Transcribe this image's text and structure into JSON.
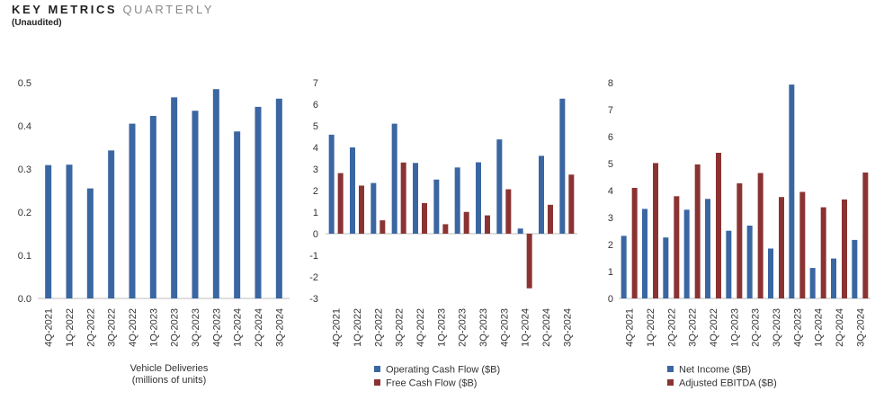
{
  "header": {
    "title_bold": "KEY METRICS",
    "title_light": "QUARTERLY",
    "subtitle": "(Unaudited)"
  },
  "colors": {
    "blue": "#3a66a2",
    "red": "#8b3333",
    "axis": "#bdbdbd",
    "text": "#333333"
  },
  "chart_data": [
    {
      "type": "bar",
      "categories": [
        "4Q-2021",
        "1Q-2022",
        "2Q-2022",
        "3Q-2022",
        "4Q-2022",
        "1Q-2023",
        "2Q-2023",
        "3Q-2023",
        "4Q-2023",
        "1Q-2024",
        "2Q-2024",
        "3Q-2024"
      ],
      "series": [
        {
          "name": "Vehicle Deliveries",
          "color": "#3a66a2",
          "values": [
            0.309,
            0.31,
            0.255,
            0.343,
            0.405,
            0.423,
            0.466,
            0.435,
            0.485,
            0.387,
            0.444,
            0.463
          ]
        }
      ],
      "yticks": [
        "0.0",
        "0.1",
        "0.2",
        "0.3",
        "0.4",
        "0.5"
      ],
      "ylim": [
        0,
        0.5
      ],
      "xlabel": [
        "Vehicle Deliveries",
        "(millions of units)"
      ],
      "legend": []
    },
    {
      "type": "bar",
      "categories": [
        "4Q-2021",
        "1Q-2022",
        "2Q-2022",
        "3Q-2022",
        "4Q-2022",
        "1Q-2023",
        "2Q-2023",
        "3Q-2023",
        "4Q-2023",
        "1Q-2024",
        "2Q-2024",
        "3Q-2024"
      ],
      "series": [
        {
          "name": "Operating Cash Flow ($B)",
          "color": "#3a66a2",
          "values": [
            4.59,
            4.0,
            2.35,
            5.1,
            3.28,
            2.51,
            3.07,
            3.31,
            4.37,
            0.24,
            3.61,
            6.26
          ]
        },
        {
          "name": "Free Cash Flow ($B)",
          "color": "#8b3333",
          "values": [
            2.81,
            2.23,
            0.62,
            3.3,
            1.42,
            0.44,
            1.01,
            0.85,
            2.06,
            -2.53,
            1.34,
            2.74
          ]
        }
      ],
      "yticks": [
        "-3",
        "-2",
        "-1",
        "0",
        "1",
        "2",
        "3",
        "4",
        "5",
        "6",
        "7"
      ],
      "ylim": [
        -3,
        7
      ],
      "xlabel": [],
      "legend": [
        "Operating Cash Flow ($B)",
        "Free Cash Flow ($B)"
      ]
    },
    {
      "type": "bar",
      "categories": [
        "4Q-2021",
        "1Q-2022",
        "2Q-2022",
        "3Q-2022",
        "4Q-2022",
        "1Q-2023",
        "2Q-2023",
        "3Q-2023",
        "4Q-2023",
        "1Q-2024",
        "2Q-2024",
        "3Q-2024"
      ],
      "series": [
        {
          "name": "Net Income ($B)",
          "color": "#3a66a2",
          "values": [
            2.32,
            3.32,
            2.26,
            3.29,
            3.69,
            2.51,
            2.7,
            1.85,
            7.93,
            1.13,
            1.48,
            2.17
          ]
        },
        {
          "name": "Adjusted EBITDA ($B)",
          "color": "#8b3333",
          "values": [
            4.1,
            5.02,
            3.79,
            4.97,
            5.4,
            4.27,
            4.65,
            3.76,
            3.95,
            3.38,
            3.67,
            4.67
          ]
        }
      ],
      "yticks": [
        "0",
        "1",
        "2",
        "3",
        "4",
        "5",
        "6",
        "7",
        "8"
      ],
      "ylim": [
        0,
        8
      ],
      "xlabel": [],
      "legend": [
        "Net Income ($B)",
        "Adjusted EBITDA ($B)"
      ]
    }
  ]
}
